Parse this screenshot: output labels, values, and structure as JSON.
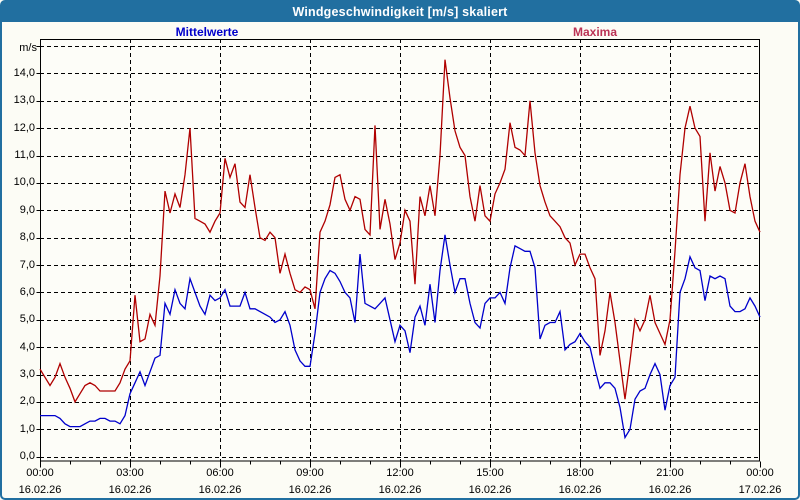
{
  "window": {
    "title": "Windgeschwindigkeit [m/s] skaliert"
  },
  "colors": {
    "titlebar_bg": "#216fa0",
    "window_border": "#216fa0",
    "title_text": "#ffffff",
    "plot_background": "#fdfdf8",
    "grid": "#000000",
    "mean_series": "#0000cc",
    "max_series": "#b00000",
    "mean_label": "#0000cc",
    "max_label": "#bb3355"
  },
  "chart_data": {
    "type": "line",
    "title": "Windgeschwindigkeit [m/s] skaliert",
    "ylabel": "m/s",
    "xlabel": "",
    "grid": true,
    "legend_position": "top",
    "x_start_min": 0,
    "x_end_min": 1440,
    "sample_interval_min": 10,
    "y_axis": {
      "unit_label": "m/s",
      "min": 0,
      "max": 14,
      "frame_min": -0.17,
      "frame_max": 15.25,
      "tick_step": 1,
      "tick_labels": [
        "0,0",
        "1,0",
        "2,0",
        "3,0",
        "4,0",
        "5,0",
        "6,0",
        "7,0",
        "8,0",
        "9,0",
        "10,0",
        "11,0",
        "12,0",
        "13,0",
        "14,0"
      ]
    },
    "x_axis": {
      "major_tick_interval_min": 180,
      "minor_tick_interval_min": 60,
      "tick_times": [
        "00:00",
        "03:00",
        "06:00",
        "09:00",
        "12:00",
        "15:00",
        "18:00",
        "21:00",
        "00:00"
      ],
      "tick_dates": [
        "16.02.26",
        "16.02.26",
        "16.02.26",
        "16.02.26",
        "16.02.26",
        "16.02.26",
        "16.02.26",
        "16.02.26",
        "17.02.26"
      ]
    },
    "series": [
      {
        "name": "Mittelwerte",
        "color": "#0000cc",
        "label_color": "#0000cc",
        "values": [
          1.5,
          1.5,
          1.5,
          1.5,
          1.4,
          1.2,
          1.1,
          1.1,
          1.1,
          1.2,
          1.3,
          1.3,
          1.4,
          1.4,
          1.3,
          1.3,
          1.2,
          1.5,
          2.3,
          2.7,
          3.1,
          2.6,
          3.1,
          3.6,
          3.7,
          5.6,
          5.2,
          6.1,
          5.6,
          5.4,
          6.5,
          6.0,
          5.5,
          5.2,
          5.9,
          5.7,
          5.8,
          6.1,
          5.5,
          5.5,
          5.5,
          6.0,
          5.4,
          5.4,
          5.3,
          5.2,
          5.1,
          4.9,
          5.0,
          5.3,
          4.8,
          3.9,
          3.5,
          3.3,
          3.3,
          4.5,
          6.0,
          6.5,
          6.8,
          6.7,
          6.4,
          6.0,
          5.8,
          4.9,
          7.4,
          5.6,
          5.5,
          5.4,
          5.6,
          5.8,
          5.0,
          4.2,
          4.8,
          4.6,
          3.8,
          5.1,
          5.5,
          4.8,
          6.3,
          4.9,
          6.8,
          8.1,
          7.0,
          6.0,
          6.5,
          6.5,
          5.6,
          4.9,
          4.7,
          5.6,
          5.8,
          5.8,
          6.0,
          5.6,
          6.9,
          7.7,
          7.6,
          7.5,
          7.5,
          6.9,
          4.3,
          4.8,
          4.9,
          4.9,
          5.3,
          3.9,
          4.1,
          4.2,
          4.5,
          4.2,
          4.0,
          3.2,
          2.5,
          2.7,
          2.7,
          2.5,
          1.8,
          0.7,
          1.0,
          2.1,
          2.4,
          2.5,
          3.0,
          3.4,
          3.0,
          1.7,
          2.6,
          2.9,
          6.0,
          6.5,
          7.3,
          6.9,
          6.8,
          5.7,
          6.6,
          6.5,
          6.6,
          6.5,
          5.5,
          5.3,
          5.3,
          5.4,
          5.8,
          5.5,
          5.1
        ]
      },
      {
        "name": "Maxima",
        "color": "#b00000",
        "label_color": "#bb3355",
        "values": [
          3.2,
          2.9,
          2.6,
          2.9,
          3.4,
          2.9,
          2.5,
          2.0,
          2.3,
          2.6,
          2.7,
          2.6,
          2.4,
          2.4,
          2.4,
          2.4,
          2.7,
          3.2,
          3.5,
          5.9,
          4.2,
          4.3,
          5.2,
          4.8,
          6.6,
          9.7,
          8.9,
          9.6,
          9.1,
          10.3,
          12.0,
          8.7,
          8.6,
          8.5,
          8.2,
          8.6,
          8.9,
          10.9,
          10.2,
          10.7,
          9.3,
          9.1,
          10.3,
          9.1,
          8.0,
          7.9,
          8.2,
          8.0,
          6.7,
          7.4,
          6.7,
          6.1,
          6.0,
          6.2,
          6.1,
          5.4,
          8.2,
          8.6,
          9.2,
          10.2,
          10.3,
          9.4,
          9.0,
          9.5,
          9.4,
          8.3,
          8.1,
          12.1,
          8.3,
          9.4,
          8.5,
          7.2,
          7.8,
          9.0,
          8.6,
          6.3,
          9.5,
          8.8,
          9.9,
          8.8,
          11.0,
          14.5,
          13.1,
          11.9,
          11.3,
          11.0,
          9.5,
          8.6,
          9.9,
          8.8,
          8.6,
          9.6,
          10.0,
          10.5,
          12.2,
          11.3,
          11.2,
          11.0,
          13.0,
          11.1,
          9.9,
          9.3,
          8.8,
          8.6,
          8.4,
          8.0,
          7.8,
          7.0,
          7.4,
          7.4,
          6.9,
          6.5,
          3.7,
          4.6,
          6.0,
          4.9,
          3.5,
          2.1,
          3.5,
          5.0,
          4.6,
          5.0,
          5.9,
          4.9,
          4.5,
          4.1,
          5.0,
          7.5,
          10.3,
          12.0,
          12.8,
          12.0,
          11.7,
          8.6,
          11.1,
          9.7,
          10.6,
          10.0,
          9.0,
          8.9,
          10.0,
          10.7,
          9.5,
          8.6,
          8.2
        ]
      }
    ]
  }
}
